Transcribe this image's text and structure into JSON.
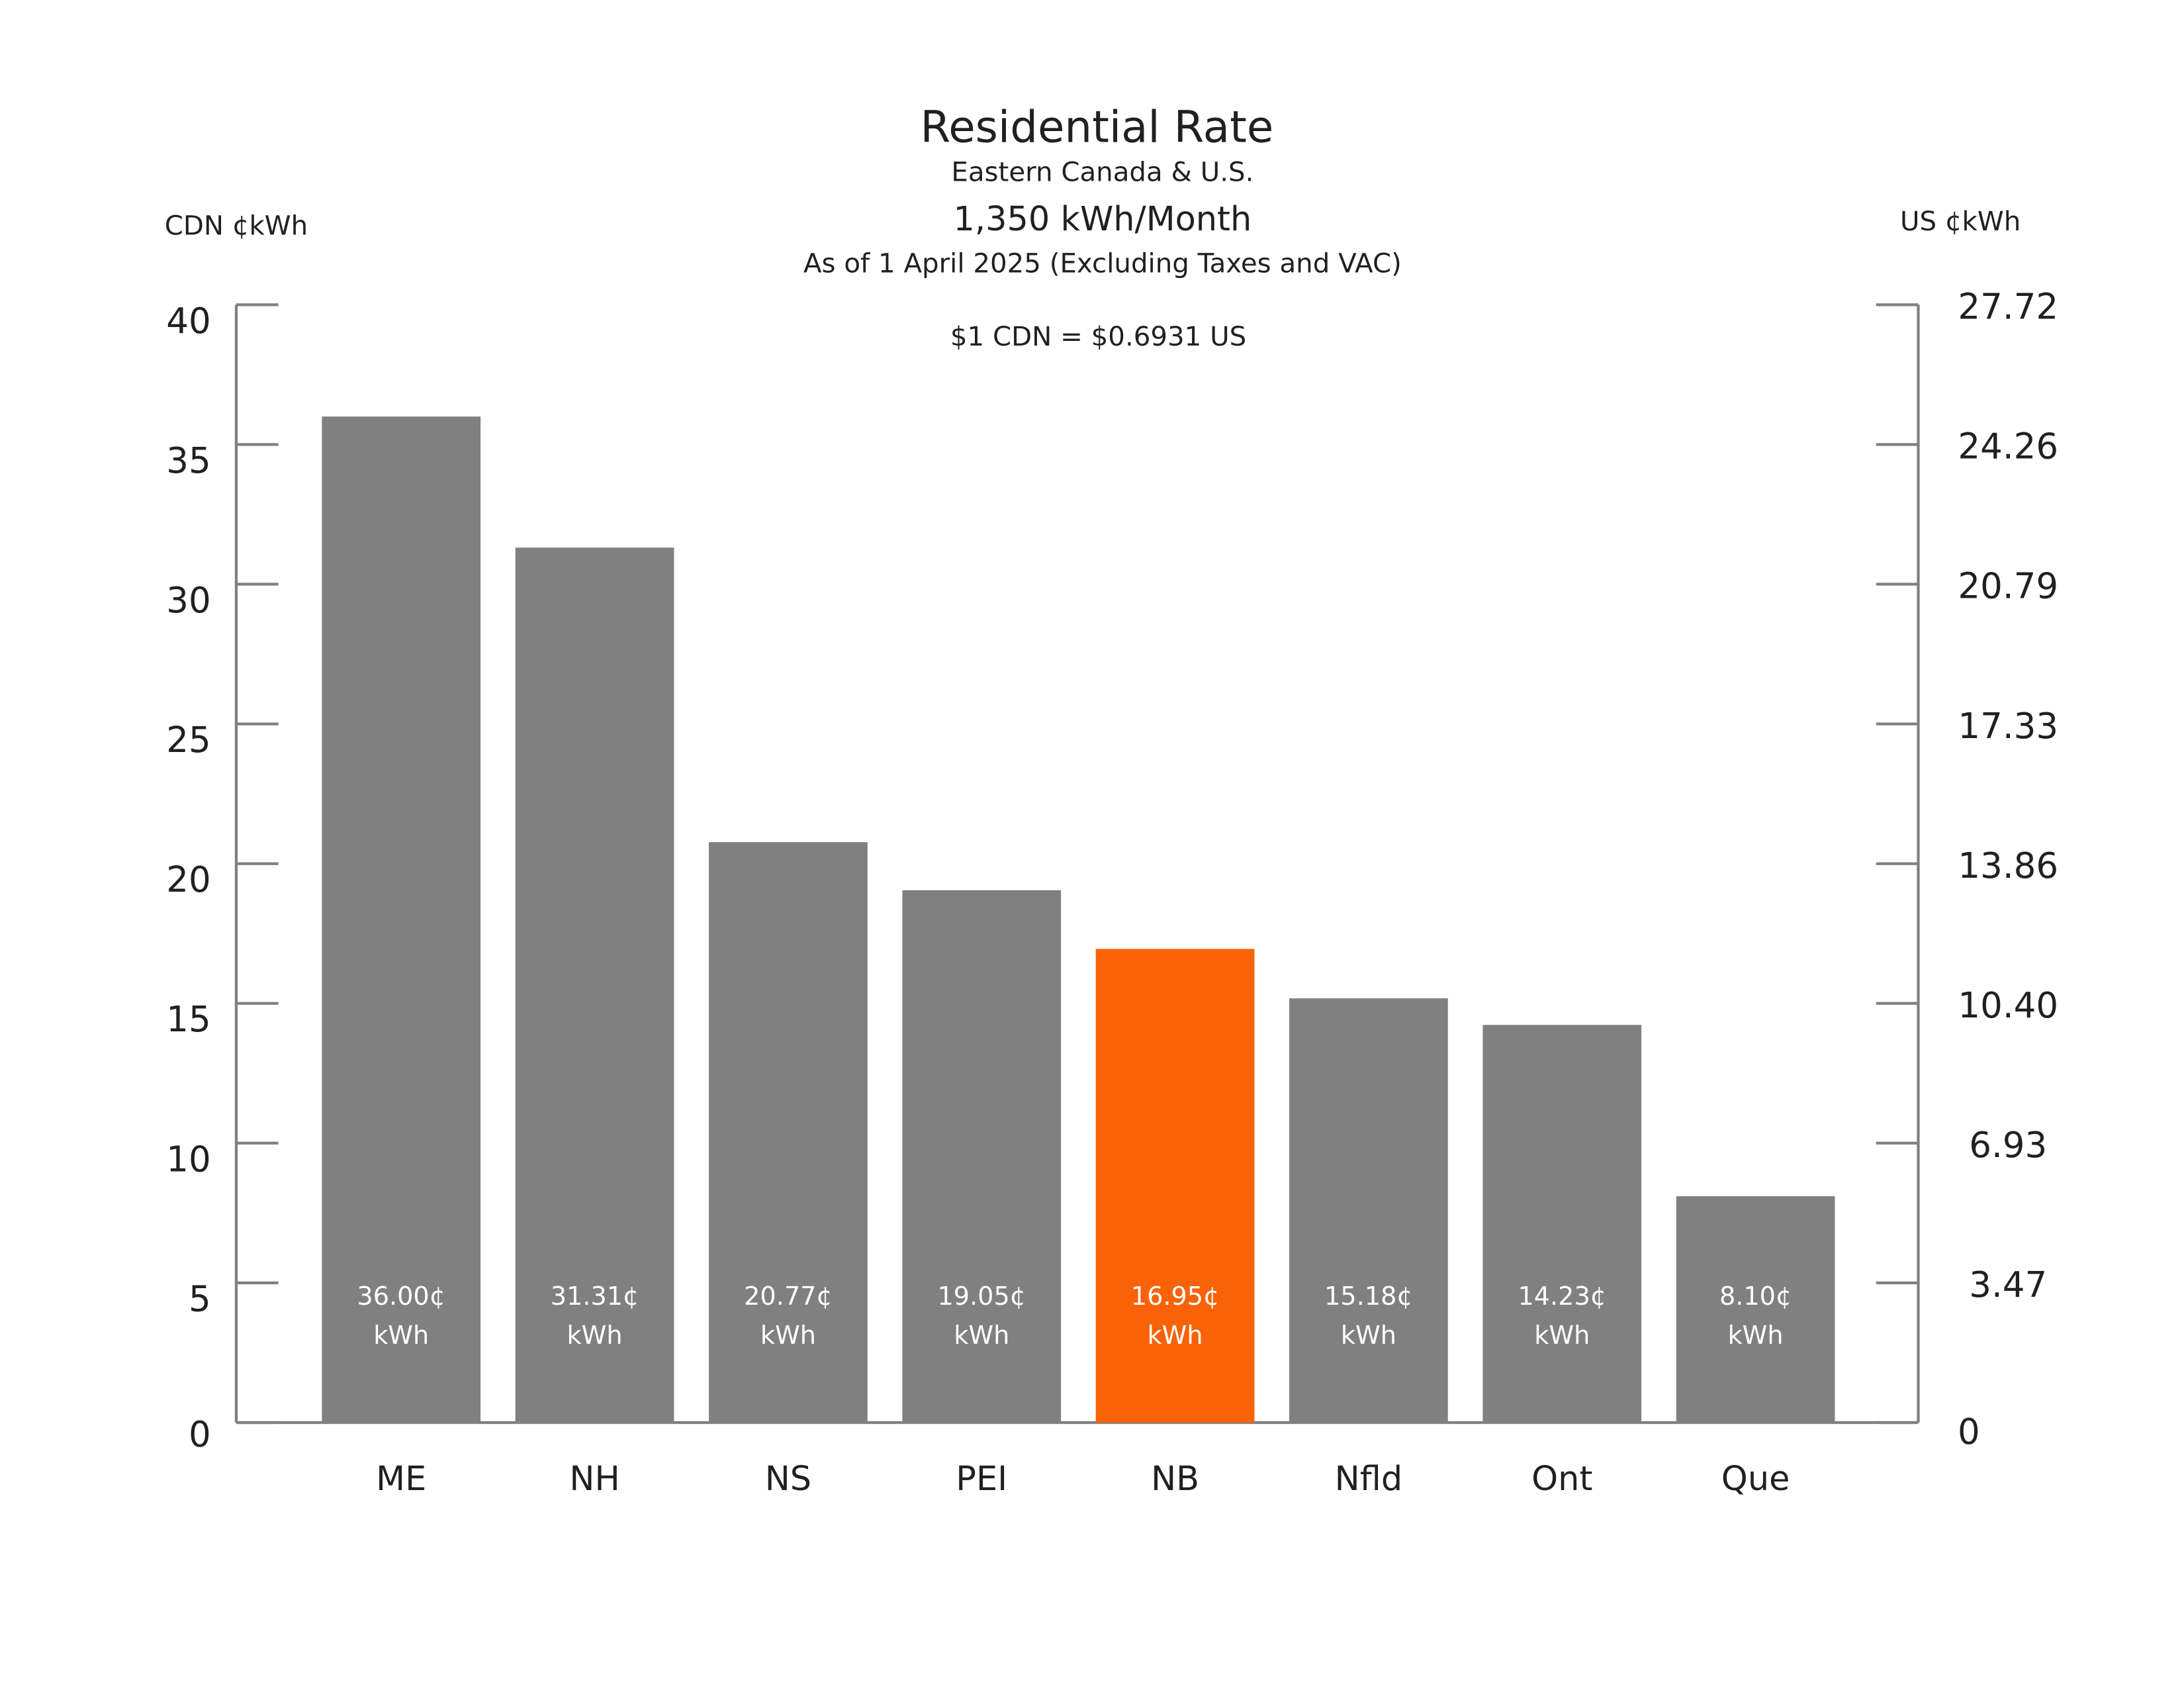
{
  "chart_data": {
    "type": "bar",
    "title": "Residential Rate",
    "subtitles": [
      "Eastern Canada & U.S.",
      "1,350 kWh/Month",
      "As of 1 April 2025 (Excluding Taxes and VAC)"
    ],
    "annotation": "$1 CDN = $0.6931 US",
    "ylabel_left": "CDN ¢kWh",
    "ylabel_right": "US ¢kWh",
    "ylim": [
      0,
      40
    ],
    "yticks_left": [
      "0",
      "5",
      "10",
      "15",
      "20",
      "25",
      "30",
      "35",
      "40"
    ],
    "yticks_right": [
      "0",
      "3.47",
      "6.93",
      "10.40",
      "13.86",
      "17.33",
      "20.79",
      "24.26",
      "27.72"
    ],
    "categories": [
      "ME",
      "NH",
      "NS",
      "PEI",
      "NB",
      "Nfld",
      "Ont",
      "Que"
    ],
    "values": [
      36.0,
      31.31,
      20.77,
      19.05,
      16.95,
      15.18,
      14.23,
      8.1
    ],
    "data_labels": [
      "36.00¢",
      "31.31¢",
      "20.77¢",
      "19.05¢",
      "16.95¢",
      "15.18¢",
      "14.23¢",
      "8.10¢"
    ],
    "data_label_unit": "kWh",
    "highlight": "NB",
    "colors": {
      "bar": "#808080",
      "highlight": "#f96207",
      "axis": "#808080",
      "label_text": "#ffffff"
    },
    "grid": false
  }
}
